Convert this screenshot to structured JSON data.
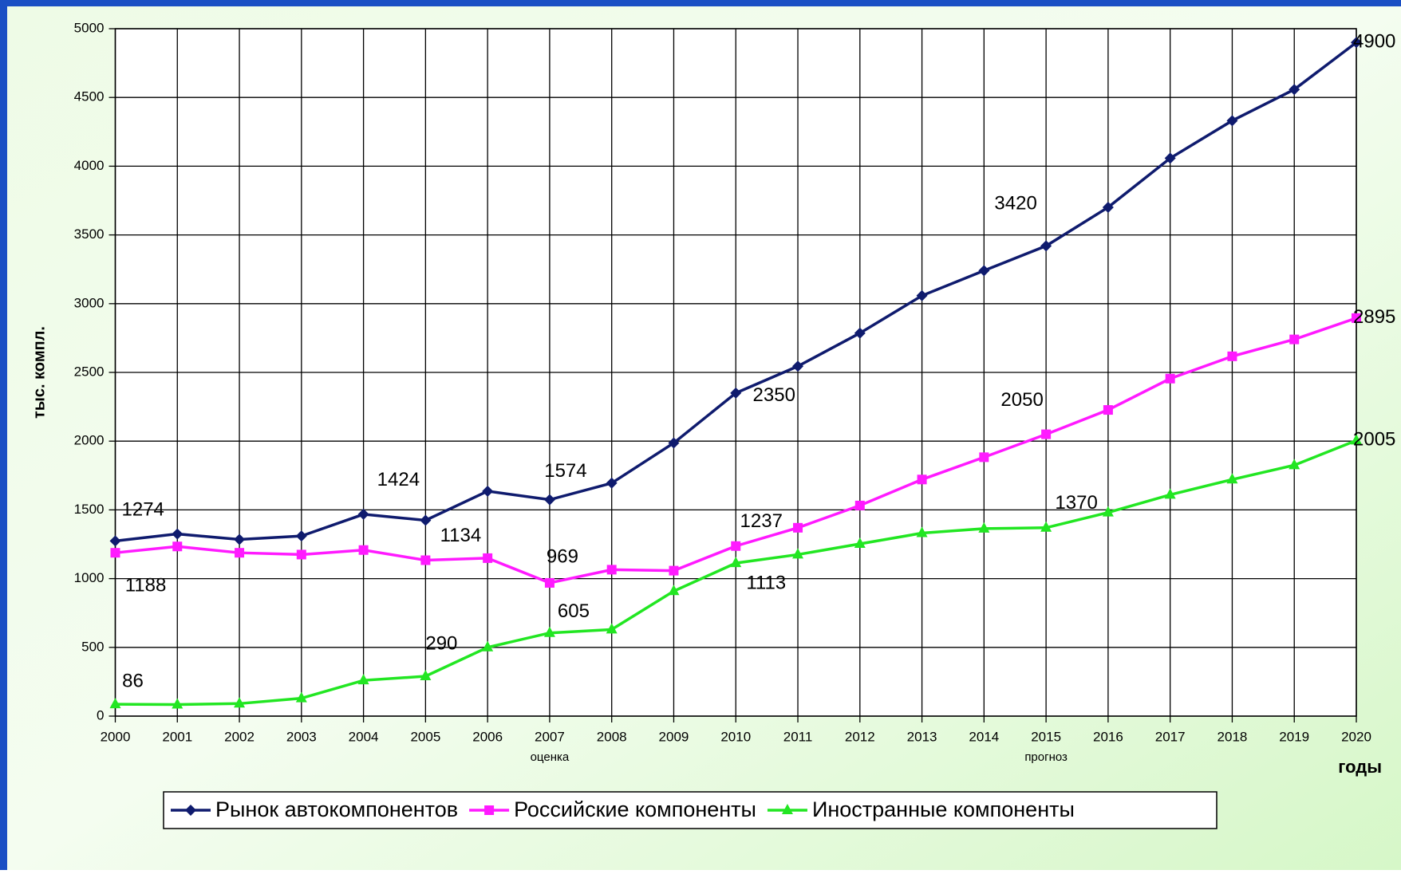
{
  "chart_data": {
    "type": "line",
    "ylabel": "тыс. компл.",
    "xlabel": "годы",
    "categories": [
      "2000",
      "2001",
      "2002",
      "2003",
      "2004",
      "2005",
      "2006",
      "2007",
      "2008",
      "2009",
      "2010",
      "2011",
      "2012",
      "2013",
      "2014",
      "2015",
      "2016",
      "2017",
      "2018",
      "2019",
      "2020"
    ],
    "x_annotations": [
      {
        "text": "оценка",
        "category": "2007"
      },
      {
        "text": "прогноз",
        "category": "2015"
      }
    ],
    "ylim": [
      0,
      5000
    ],
    "yticks": [
      0,
      500,
      1000,
      1500,
      2000,
      2500,
      3000,
      3500,
      4000,
      4500,
      5000
    ],
    "grid": true,
    "series": [
      {
        "name": "Рынок автокомпонентов",
        "color": "#0f1b6e",
        "marker": "diamond",
        "values": [
          1274,
          1325,
          1285,
          1310,
          1468,
          1424,
          1636,
          1574,
          1695,
          1987,
          2350,
          2545,
          2786,
          3058,
          3240,
          3420,
          3701,
          4058,
          4331,
          4558,
          4900
        ],
        "value_labels": [
          "1274",
          null,
          null,
          null,
          null,
          "1424",
          null,
          "1574",
          null,
          null,
          "2350",
          null,
          null,
          null,
          null,
          "3420",
          null,
          null,
          null,
          null,
          "4900"
        ]
      },
      {
        "name": "Российские компоненты",
        "color": "#ff1aff",
        "marker": "square",
        "values": [
          1188,
          1234,
          1188,
          1175,
          1208,
          1134,
          1149,
          969,
          1065,
          1058,
          1237,
          1370,
          1532,
          1721,
          1883,
          2050,
          2227,
          2455,
          2617,
          2740,
          2895
        ],
        "value_labels": [
          "1188",
          null,
          null,
          null,
          null,
          "1134",
          null,
          "969",
          null,
          null,
          "1237",
          null,
          null,
          null,
          null,
          "2050",
          null,
          null,
          null,
          null,
          "2895"
        ]
      },
      {
        "name": "Иностранные компоненты",
        "color": "#22e622",
        "marker": "triangle",
        "values": [
          86,
          84,
          91,
          130,
          260,
          290,
          500,
          605,
          630,
          909,
          1113,
          1175,
          1253,
          1331,
          1364,
          1370,
          1481,
          1610,
          1721,
          1825,
          2005
        ],
        "value_labels": [
          "86",
          null,
          null,
          null,
          null,
          "290",
          null,
          "605",
          null,
          null,
          "1113",
          null,
          null,
          null,
          null,
          "1370",
          null,
          null,
          null,
          null,
          "2005"
        ]
      }
    ],
    "legend": "bottom"
  }
}
